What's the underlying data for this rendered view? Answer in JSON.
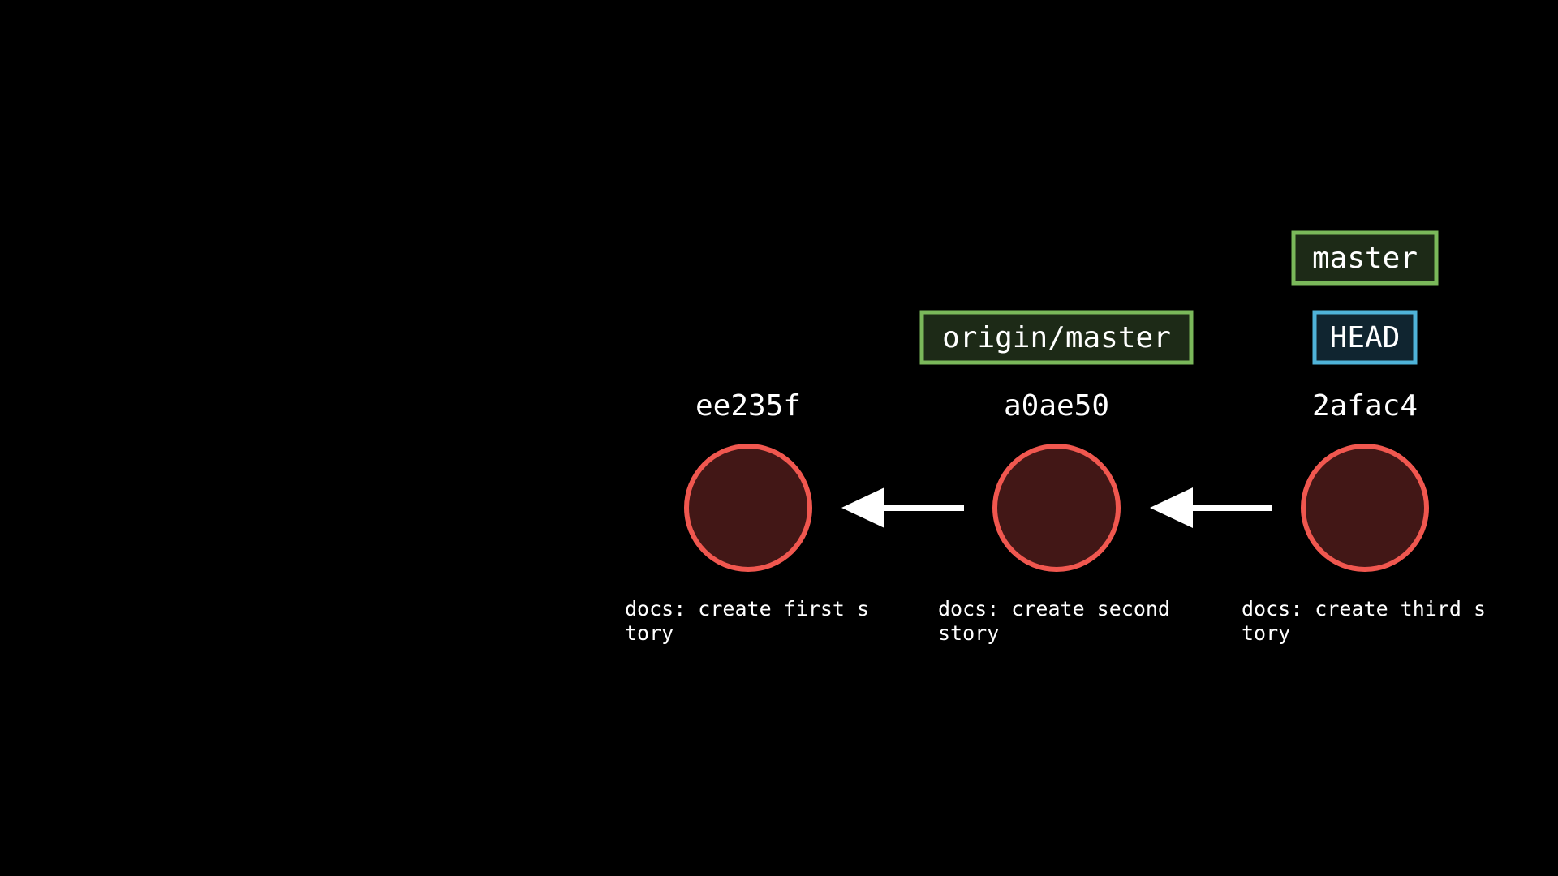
{
  "colors": {
    "background": "#000000",
    "commit_stroke": "#f0574f",
    "commit_fill": "#421716",
    "branch_stroke": "#7ab85a",
    "branch_fill": "#1d2a17",
    "head_stroke": "#4fb3d9",
    "head_fill": "#102530",
    "arrow": "#ffffff",
    "text": "#ffffff"
  },
  "commits": [
    {
      "hash": "ee235f",
      "message_lines": [
        "docs: create first s",
        "tory"
      ]
    },
    {
      "hash": "a0ae50",
      "message_lines": [
        "docs: create second",
        "story"
      ]
    },
    {
      "hash": "2afac4",
      "message_lines": [
        "docs: create third s",
        "tory"
      ]
    }
  ],
  "edges": [
    {
      "from": 1,
      "to": 0
    },
    {
      "from": 2,
      "to": 1
    }
  ],
  "refs": [
    {
      "label": "origin/master",
      "commit": 1,
      "kind": "branch"
    },
    {
      "label": "HEAD",
      "commit": 2,
      "kind": "head"
    },
    {
      "label": "master",
      "commit": 2,
      "kind": "branch"
    }
  ]
}
